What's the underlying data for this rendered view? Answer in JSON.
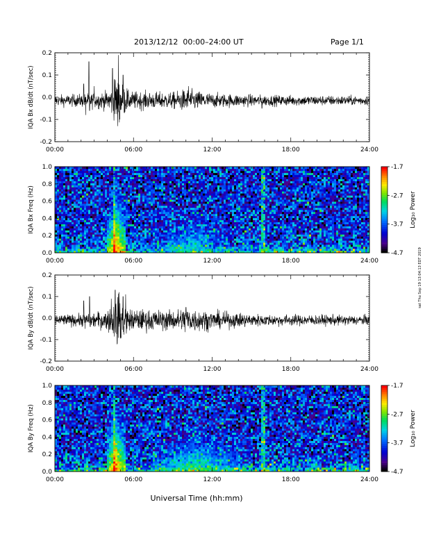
{
  "header": {
    "title": "2013/12/12  00:00–24:00 UT",
    "page": "Page 1/1"
  },
  "footer": {
    "xlabel": "Universal Time (hh:mm)",
    "credit": "sat Thu Sep 19 13:04:13 EDT 2019"
  },
  "chart_data": [
    {
      "type": "line",
      "name": "bx-timeseries",
      "ylabel": "IQA Bx dB/dt (nT/sec)",
      "ylim": [
        -0.2,
        0.2
      ],
      "yticks": [
        -0.2,
        -0.1,
        0.0,
        0.1,
        0.2
      ],
      "ytick_labels": [
        "-0.2",
        "-0.1",
        "0.0",
        "0.1",
        "0.2"
      ],
      "xlim": [
        0,
        24
      ],
      "xticks": [
        0,
        6,
        12,
        18,
        24
      ],
      "xtick_labels": [
        "00:00",
        "06:00",
        "12:00",
        "18:00",
        "24:00"
      ],
      "baseline": -0.015,
      "noise_envelope": [
        {
          "x": 0,
          "amp": 0.012
        },
        {
          "x": 2,
          "amp": 0.014
        },
        {
          "x": 4,
          "amp": 0.02
        },
        {
          "x": 4.8,
          "amp": 0.05
        },
        {
          "x": 5.6,
          "amp": 0.02
        },
        {
          "x": 9,
          "amp": 0.018
        },
        {
          "x": 10,
          "amp": 0.025
        },
        {
          "x": 12,
          "amp": 0.016
        },
        {
          "x": 16,
          "amp": 0.012
        },
        {
          "x": 20,
          "amp": 0.011
        },
        {
          "x": 24,
          "amp": 0.01
        }
      ],
      "spikes": [
        {
          "x": 2.2,
          "y": 0.06
        },
        {
          "x": 2.35,
          "y": -0.08
        },
        {
          "x": 2.6,
          "y": 0.16
        },
        {
          "x": 2.65,
          "y": -0.06
        },
        {
          "x": 3.0,
          "y": 0.05
        },
        {
          "x": 4.4,
          "y": 0.13
        },
        {
          "x": 4.55,
          "y": 0.08
        },
        {
          "x": 4.8,
          "y": -0.13
        },
        {
          "x": 4.85,
          "y": 0.19
        },
        {
          "x": 4.95,
          "y": -0.1
        },
        {
          "x": 5.2,
          "y": 0.1
        },
        {
          "x": 5.3,
          "y": -0.07
        },
        {
          "x": 5.5,
          "y": 0.04
        },
        {
          "x": 10.2,
          "y": 0.05
        },
        {
          "x": 15.8,
          "y": -0.05
        }
      ]
    },
    {
      "type": "heatmap",
      "name": "bx-spectrogram",
      "ylabel": "IQA Bx Freq (Hz)",
      "ylim": [
        0.0,
        1.0
      ],
      "yticks": [
        0.0,
        0.2,
        0.4,
        0.6,
        0.8,
        1.0
      ],
      "ytick_labels": [
        "0.0",
        "0.2",
        "0.4",
        "0.6",
        "0.8",
        "1.0"
      ],
      "xlim": [
        0,
        24
      ],
      "xticks": [
        0,
        6,
        12,
        18,
        24
      ],
      "xtick_labels": [
        "00:00",
        "06:00",
        "12:00",
        "18:00",
        "24:00"
      ],
      "colorbar": {
        "label": "Log₁₀ Power",
        "range": [
          -4.7,
          -1.7
        ],
        "ticks": [
          -1.7,
          -2.7,
          -3.7,
          -4.7
        ],
        "tick_labels": [
          "-1.7",
          "-2.7",
          "-3.7",
          "-4.7"
        ]
      },
      "vertical_lines": [
        4.5,
        15.9
      ],
      "bursts": [
        {
          "x": 4.7,
          "width": 0.7,
          "level": -1.9
        },
        {
          "x": 10.5,
          "width": 3.0,
          "level": -3.0
        }
      ]
    },
    {
      "type": "line",
      "name": "by-timeseries",
      "ylabel": "IQA By dB/dt (nT/sec)",
      "ylim": [
        -0.2,
        0.2
      ],
      "yticks": [
        -0.2,
        -0.1,
        0.0,
        0.1,
        0.2
      ],
      "ytick_labels": [
        "-0.2",
        "-0.1",
        "0.0",
        "0.1",
        "0.2"
      ],
      "xlim": [
        0,
        24
      ],
      "xticks": [
        0,
        6,
        12,
        18,
        24
      ],
      "xtick_labels": [
        "00:00",
        "06:00",
        "12:00",
        "18:00",
        "24:00"
      ],
      "baseline": -0.01,
      "noise_envelope": [
        {
          "x": 0,
          "amp": 0.012
        },
        {
          "x": 2,
          "amp": 0.014
        },
        {
          "x": 4,
          "amp": 0.022
        },
        {
          "x": 4.8,
          "amp": 0.055
        },
        {
          "x": 5.6,
          "amp": 0.025
        },
        {
          "x": 9,
          "amp": 0.022
        },
        {
          "x": 10,
          "amp": 0.03
        },
        {
          "x": 12,
          "amp": 0.02
        },
        {
          "x": 16,
          "amp": 0.013
        },
        {
          "x": 20,
          "amp": 0.012
        },
        {
          "x": 24,
          "amp": 0.011
        }
      ],
      "spikes": [
        {
          "x": 2.2,
          "y": 0.08
        },
        {
          "x": 2.3,
          "y": -0.05
        },
        {
          "x": 2.65,
          "y": 0.1
        },
        {
          "x": 2.7,
          "y": -0.04
        },
        {
          "x": 4.3,
          "y": 0.09
        },
        {
          "x": 4.6,
          "y": 0.13
        },
        {
          "x": 4.75,
          "y": -0.12
        },
        {
          "x": 4.9,
          "y": 0.12
        },
        {
          "x": 5.05,
          "y": -0.09
        },
        {
          "x": 5.2,
          "y": 0.1
        },
        {
          "x": 5.4,
          "y": 0.11
        },
        {
          "x": 5.5,
          "y": -0.05
        },
        {
          "x": 10.0,
          "y": 0.05
        },
        {
          "x": 10.4,
          "y": -0.04
        }
      ]
    },
    {
      "type": "heatmap",
      "name": "by-spectrogram",
      "ylabel": "IQA By Freq (Hz)",
      "ylim": [
        0.0,
        1.0
      ],
      "yticks": [
        0.0,
        0.2,
        0.4,
        0.6,
        0.8,
        1.0
      ],
      "ytick_labels": [
        "0.0",
        "0.2",
        "0.4",
        "0.6",
        "0.8",
        "1.0"
      ],
      "xlim": [
        0,
        24
      ],
      "xticks": [
        0,
        6,
        12,
        18,
        24
      ],
      "xtick_labels": [
        "00:00",
        "06:00",
        "12:00",
        "18:00",
        "24:00"
      ],
      "colorbar": {
        "label": "Log₁₀ Power",
        "range": [
          -4.7,
          -1.7
        ],
        "ticks": [
          -1.7,
          -2.7,
          -3.7,
          -4.7
        ],
        "tick_labels": [
          "-1.7",
          "-2.7",
          "-3.7",
          "-4.7"
        ]
      },
      "vertical_lines": [
        4.5,
        15.9
      ],
      "bursts": [
        {
          "x": 4.7,
          "width": 0.7,
          "level": -1.9
        },
        {
          "x": 10.8,
          "width": 3.5,
          "level": -2.8
        }
      ]
    }
  ]
}
